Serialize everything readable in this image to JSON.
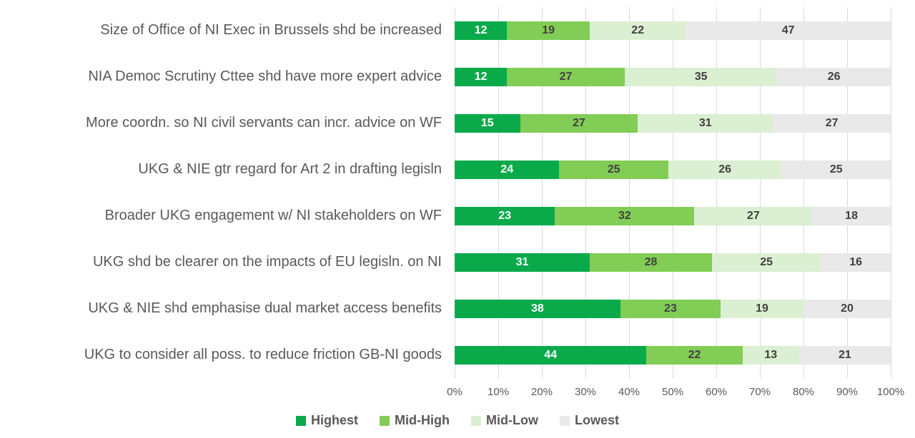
{
  "chart_data": {
    "type": "bar",
    "orientation": "horizontal",
    "stacked": true,
    "title": "",
    "xlabel": "",
    "ylabel": "",
    "xlim": [
      0,
      100
    ],
    "grid": true,
    "legend_position": "bottom",
    "x_ticks": [
      "0%",
      "10%",
      "20%",
      "30%",
      "40%",
      "50%",
      "60%",
      "70%",
      "80%",
      "90%",
      "100%"
    ],
    "categories": [
      "Size of Office of NI Exec in Brussels shd be increased",
      "NIA Democ Scrutiny Cttee shd have more expert advice",
      "More coordn. so NI civil servants can incr. advice on WF",
      "UKG & NIE gtr regard for Art 2 in drafting legisln",
      "Broader UKG engagement w/ NI stakeholders on WF",
      "UKG shd be clearer on the impacts of EU legisln. on NI",
      "UKG & NIE shd emphasise dual market access benefits",
      "UKG to consider all poss. to reduce friction GB-NI goods"
    ],
    "series": [
      {
        "name": "Highest",
        "color": "#0AAA4B",
        "value_label_color": "#FFFFFF",
        "values": [
          12,
          12,
          15,
          24,
          23,
          31,
          38,
          44
        ]
      },
      {
        "name": "Mid-High",
        "color": "#82CD55",
        "value_label_color": "#404040",
        "values": [
          19,
          27,
          27,
          25,
          32,
          28,
          23,
          22
        ]
      },
      {
        "name": "Mid-Low",
        "color": "#DBEFD2",
        "value_label_color": "#404040",
        "values": [
          22,
          35,
          31,
          26,
          27,
          25,
          19,
          13
        ]
      },
      {
        "name": "Lowest",
        "color": "#E9E9E9",
        "value_label_color": "#404040",
        "values": [
          47,
          26,
          27,
          25,
          18,
          16,
          20,
          21
        ]
      }
    ]
  },
  "styles": {
    "background": "#FFFFFF",
    "grid_color": "#D9D9D9",
    "category_label_color": "#595959",
    "tick_label_color": "#595959",
    "legend_text_color": "#595959"
  }
}
